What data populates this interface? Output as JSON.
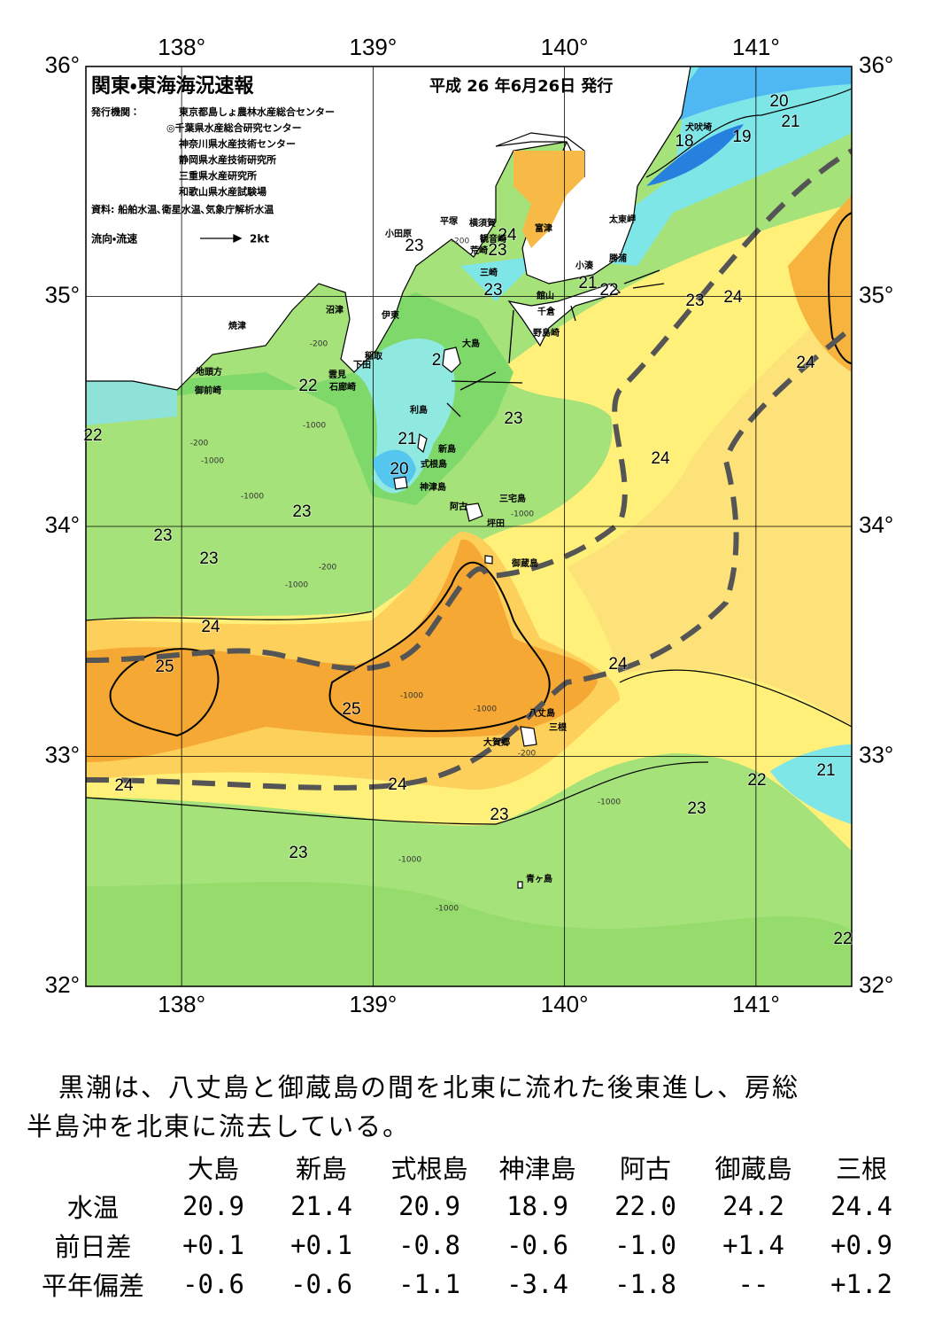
{
  "map": {
    "title": "関東・東海海況速報",
    "date": "平成 26 年6月26日 発行",
    "issuer_label": "発行機関：",
    "issuers": [
      "東京都島しょ農林水産総合センター",
      "◎千葉県水産総合研究センター",
      "神奈川県水産技術センター",
      "静岡県水産技術研究所",
      "三重県水産研究所",
      "和歌山県水産試験場"
    ],
    "source": "資料: 船舶水温､衛星水温､気象庁解析水温",
    "legend_label": "流向・流速",
    "legend_scale": "2kt",
    "xlim": [
      137.5,
      141.5
    ],
    "ylim": [
      32,
      36
    ],
    "xticks": [
      {
        "value": 138,
        "label": "138°"
      },
      {
        "value": 139,
        "label": "139°"
      },
      {
        "value": 140,
        "label": "140°"
      },
      {
        "value": 141,
        "label": "141°"
      }
    ],
    "yticks": [
      {
        "value": 32,
        "label": "32°"
      },
      {
        "value": 33,
        "label": "33°"
      },
      {
        "value": 34,
        "label": "34°"
      },
      {
        "value": 35,
        "label": "35°"
      },
      {
        "value": 36,
        "label": "36°"
      }
    ],
    "contour_labels": [
      "20",
      "21",
      "18",
      "19",
      "23",
      "24",
      "23",
      "23",
      "21",
      "22",
      "23",
      "24",
      "24",
      "2",
      "22",
      "23",
      "22",
      "21",
      "24",
      "20",
      "23",
      "23",
      "23",
      "24",
      "25",
      "24",
      "25",
      "21",
      "22",
      "24",
      "24",
      "23",
      "23",
      "23",
      "22"
    ],
    "depth_labels": [
      "-200",
      "-200",
      "-1000",
      "-200",
      "-1000",
      "-1000",
      "-200",
      "-1000",
      "-1000",
      "-1000",
      "-1000",
      "-200",
      "-1000",
      "-1000",
      "-1000"
    ],
    "places": [
      "小田原",
      "平塚",
      "横須賀",
      "観音崎",
      "荒崎",
      "富津",
      "太東岬",
      "勝浦",
      "小湊",
      "三崎",
      "館山",
      "千倉",
      "野島崎",
      "沼津",
      "伊東",
      "焼津",
      "大島",
      "稲取",
      "下田",
      "雲見",
      "石廊崎",
      "地頭方",
      "御前崎",
      "利島",
      "新島",
      "式根島",
      "神津島",
      "三宅島",
      "阿古",
      "坪田",
      "御蔵島",
      "八丈島",
      "三根",
      "大賀郷",
      "青ヶ島",
      "犬吠埼"
    ]
  },
  "description": [
    "黒潮は、八丈島と御蔵島の間を北東に流れた後東進し、房総",
    "半島沖を北東に流去している。"
  ],
  "table": {
    "header": [
      "大島",
      "新島",
      "式根島",
      "神津島",
      "阿古",
      "御蔵島",
      "三根"
    ],
    "rows": [
      {
        "label": "水温",
        "cells": [
          "20.9",
          "21.4",
          "20.9",
          "18.9",
          "22.0",
          "24.2",
          "24.4"
        ]
      },
      {
        "label": "前日差",
        "cells": [
          "+0.1",
          "+0.1",
          "-0.8",
          "-0.6",
          "-1.0",
          "+1.4",
          "+0.9"
        ]
      },
      {
        "label": "平年偏差",
        "cells": [
          "-0.6",
          "-0.6",
          "-1.1",
          "-3.4",
          "-1.8",
          "--",
          "+1.2"
        ]
      }
    ]
  }
}
